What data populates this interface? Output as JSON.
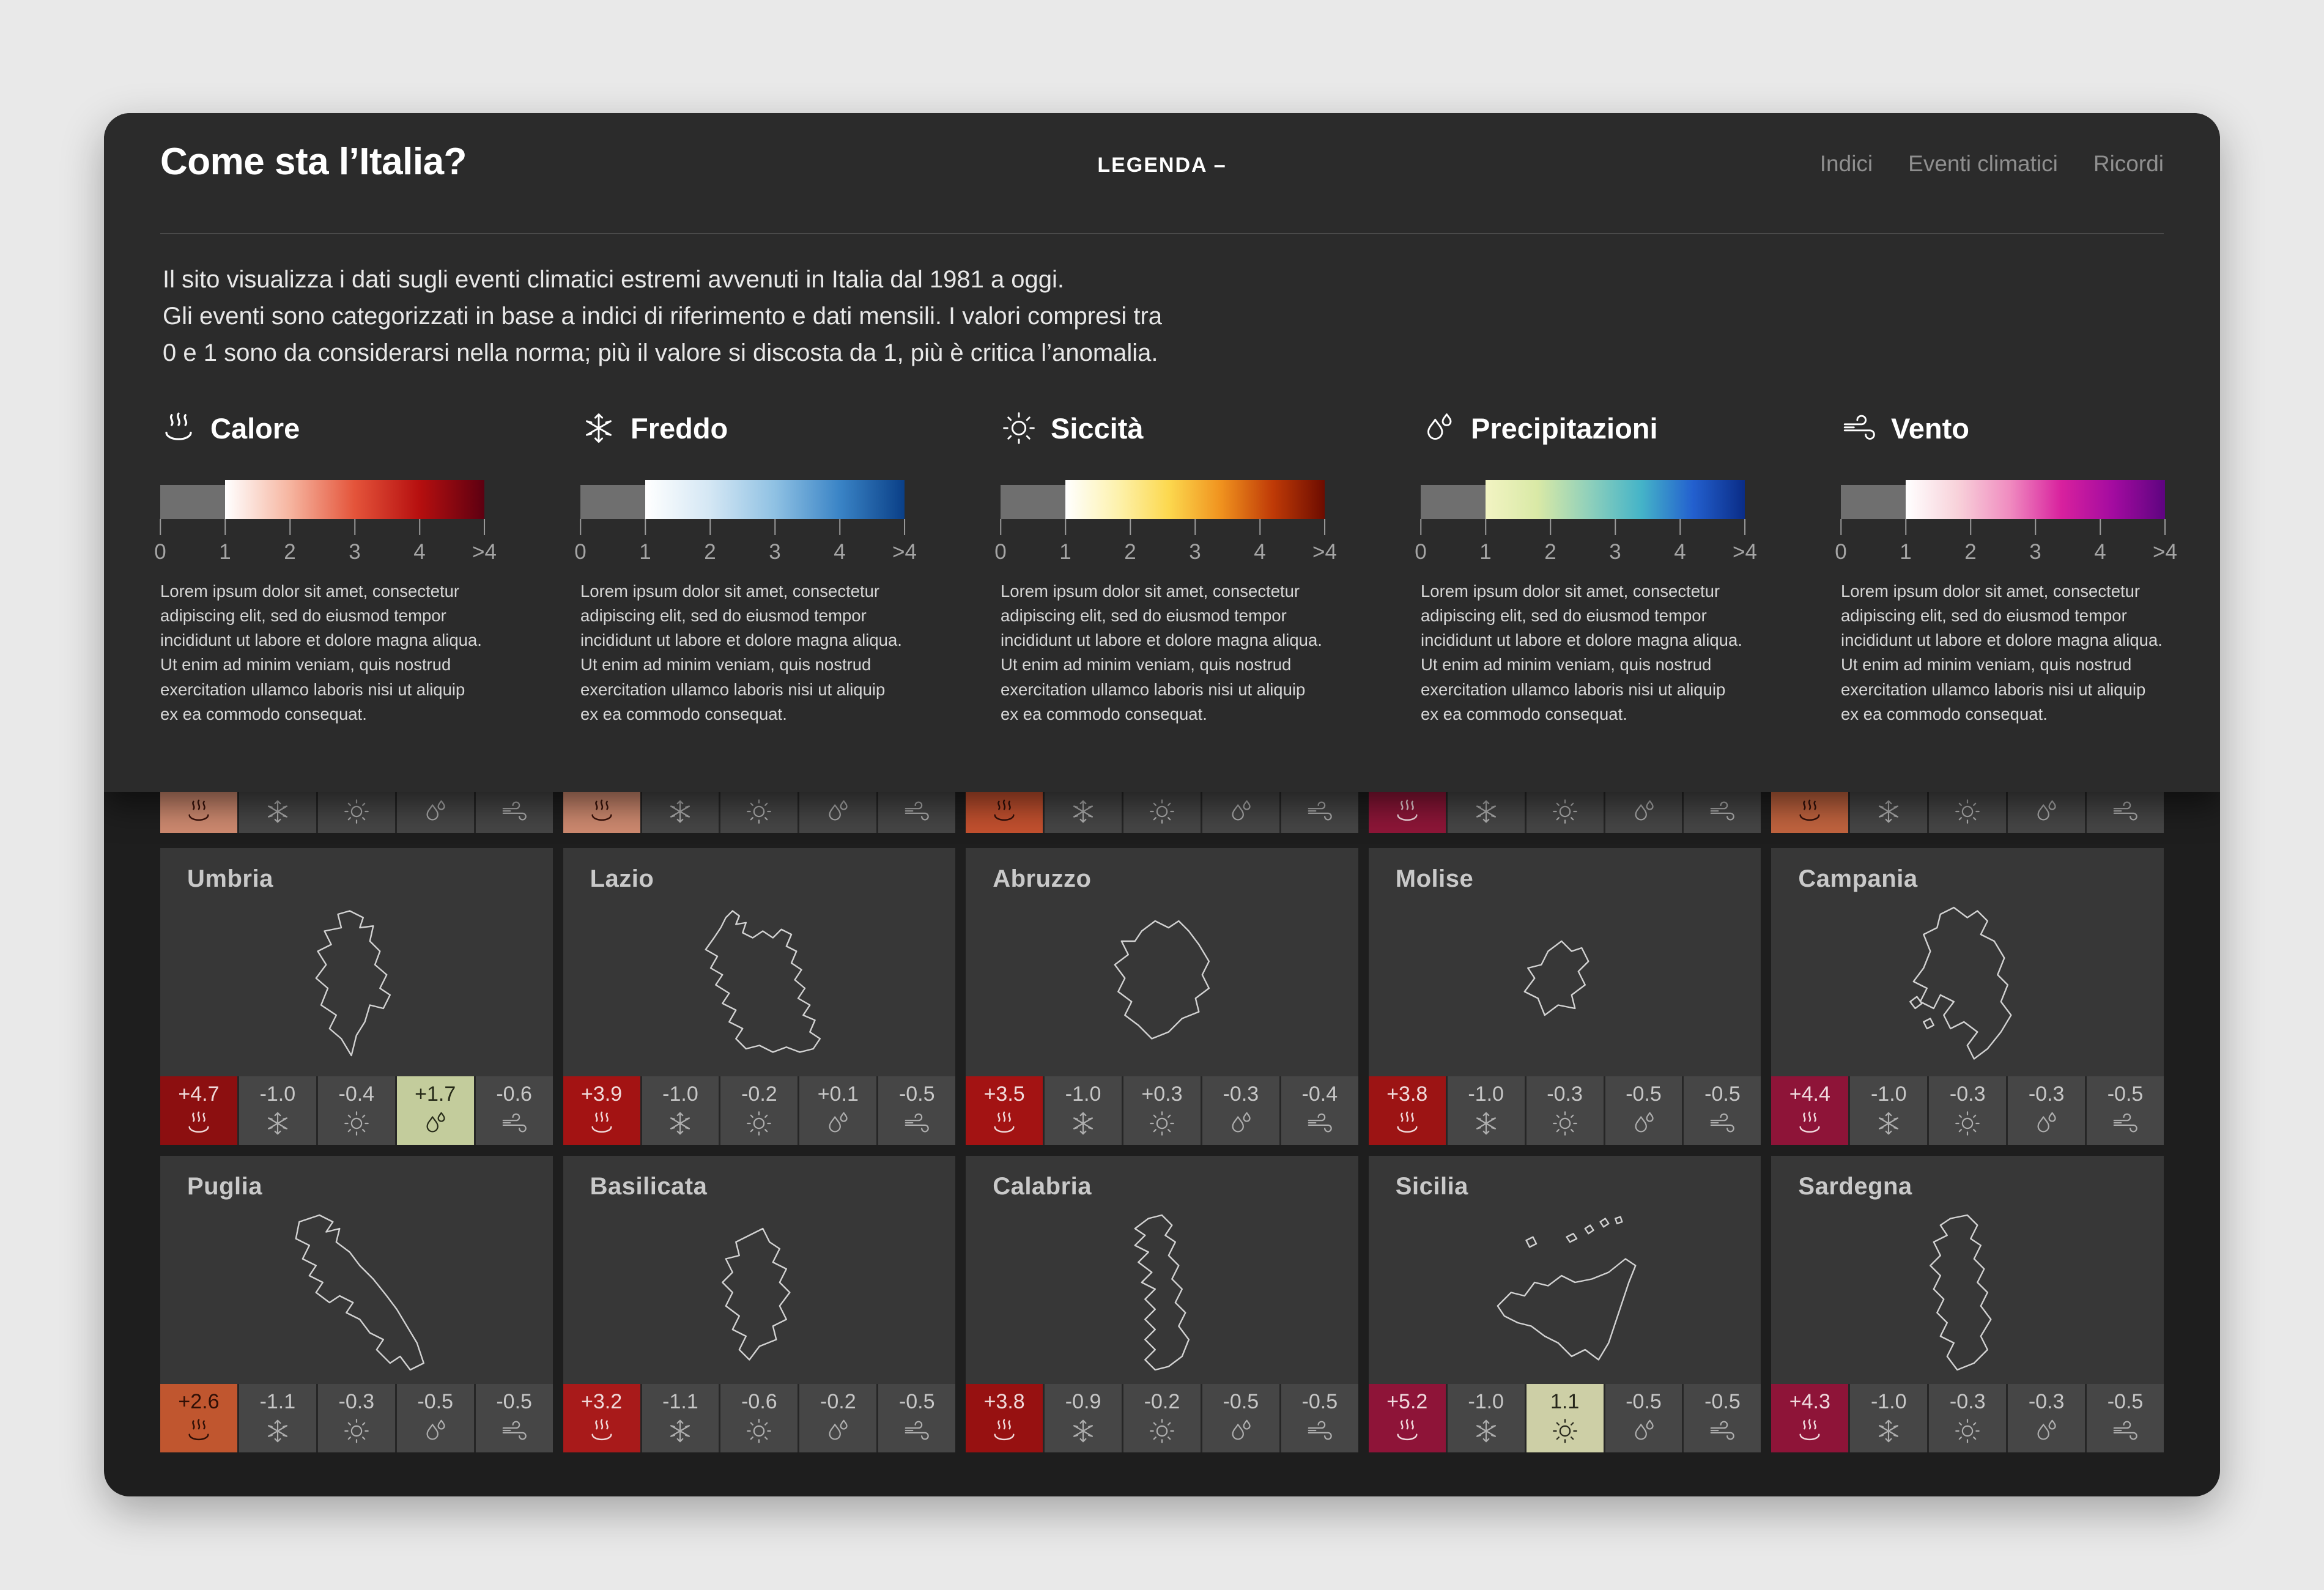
{
  "header": {
    "title": "Come sta l’Italia?",
    "legend_toggle": "LEGENDA –",
    "nav": [
      {
        "label": "Indici"
      },
      {
        "label": "Eventi climatici"
      },
      {
        "label": "Ricordi"
      }
    ]
  },
  "intro": "Il sito visualizza i dati sugli eventi climatici estremi avvenuti in Italia dal 1981 a oggi.\nGli eventi sono categorizzati in base a indici di riferimento e dati mensili. I valori compresi tra\n0 e 1 sono da considerarsi nella norma; più il valore si discosta da 1, più è critica l’anomalia.",
  "legend": {
    "ticks": [
      "0",
      "1",
      "2",
      "3",
      "4",
      ">4"
    ],
    "description": "Lorem ipsum dolor sit amet, consectetur adipiscing elit, sed do eiusmod tempor incididunt ut labore et dolore magna aliqua. Ut enim ad minim veniam, quis nostrud exercitation ullamco laboris nisi ut aliquip ex ea commodo consequat.",
    "gray": "#6f6f6f",
    "categories": [
      {
        "id": "calore",
        "label": "Calore",
        "icon": "heat-icon",
        "stops": [
          "#ffffff",
          "#f6b5a0",
          "#e4543a",
          "#b60f0f",
          "#5d0011"
        ]
      },
      {
        "id": "freddo",
        "label": "Freddo",
        "icon": "snowflake-icon",
        "stops": [
          "#ffffff",
          "#d4e7f4",
          "#8fc1e3",
          "#3a84c6",
          "#0a3f87"
        ]
      },
      {
        "id": "siccita",
        "label": "Siccità",
        "icon": "sun-icon",
        "stops": [
          "#ffffff",
          "#fdf2ae",
          "#fcd84e",
          "#f0921e",
          "#bf3a07",
          "#6d0c00"
        ]
      },
      {
        "id": "precipitazioni",
        "label": "Precipitazioni",
        "icon": "drops-icon",
        "stops": [
          "#f2f4c3",
          "#d9e9a6",
          "#8fd0bb",
          "#45b4c8",
          "#2360cf",
          "#0a2c86"
        ]
      },
      {
        "id": "vento",
        "label": "Vento",
        "icon": "wind-icon",
        "stops": [
          "#ffffff",
          "#f8d2da",
          "#f08cc0",
          "#d8219e",
          "#a30ba0",
          "#5e0480"
        ]
      }
    ]
  },
  "cell_icons": [
    "heat-icon",
    "snowflake-icon",
    "sun-icon",
    "drops-icon",
    "wind-icon"
  ],
  "partial_row": [
    {
      "heat_color": "#cf8a70",
      "heat_fg": "#3a120a"
    },
    {
      "heat_color": "#cf8a70",
      "heat_fg": "#3a120a"
    },
    {
      "heat_color": "#c4512f",
      "heat_fg": "#33100a"
    },
    {
      "heat_color": "#8e1638",
      "heat_fg": "#f2d8de"
    },
    {
      "heat_color": "#c2643f",
      "heat_fg": "#33100a"
    }
  ],
  "regions": [
    {
      "name": "Umbria",
      "values": [
        {
          "value": "+4.7",
          "bg": "#8c0f10",
          "fg": "#f0dada"
        },
        {
          "value": "-1.0"
        },
        {
          "value": "-0.4"
        },
        {
          "value": "+1.7",
          "bg": "#c3cc9c",
          "fg": "#262a18"
        },
        {
          "value": "-0.6"
        }
      ]
    },
    {
      "name": "Lazio",
      "values": [
        {
          "value": "+3.9",
          "bg": "#a31313",
          "fg": "#f0dada"
        },
        {
          "value": "-1.0"
        },
        {
          "value": "-0.2"
        },
        {
          "value": "+0.1"
        },
        {
          "value": "-0.5"
        }
      ]
    },
    {
      "name": "Abruzzo",
      "values": [
        {
          "value": "+3.5",
          "bg": "#a31313",
          "fg": "#f0dada"
        },
        {
          "value": "-1.0"
        },
        {
          "value": "+0.3"
        },
        {
          "value": "-0.3"
        },
        {
          "value": "-0.4"
        }
      ]
    },
    {
      "name": "Molise",
      "values": [
        {
          "value": "+3.8",
          "bg": "#9c1414",
          "fg": "#f0dada"
        },
        {
          "value": "-1.0"
        },
        {
          "value": "-0.3"
        },
        {
          "value": "-0.5"
        },
        {
          "value": "-0.5"
        }
      ]
    },
    {
      "name": "Campania",
      "values": [
        {
          "value": "+4.4",
          "bg": "#8e1438",
          "fg": "#f0dade"
        },
        {
          "value": "-1.0"
        },
        {
          "value": "-0.3"
        },
        {
          "value": "-0.3"
        },
        {
          "value": "-0.5"
        }
      ]
    },
    {
      "name": "Puglia",
      "values": [
        {
          "value": "+2.6",
          "bg": "#c0562f",
          "fg": "#2f0f06"
        },
        {
          "value": "-1.1"
        },
        {
          "value": "-0.3"
        },
        {
          "value": "-0.5"
        },
        {
          "value": "-0.5"
        }
      ]
    },
    {
      "name": "Basilicata",
      "values": [
        {
          "value": "+3.2",
          "bg": "#a81a1a",
          "fg": "#f0dada"
        },
        {
          "value": "-1.1"
        },
        {
          "value": "-0.6"
        },
        {
          "value": "-0.2"
        },
        {
          "value": "-0.5"
        }
      ]
    },
    {
      "name": "Calabria",
      "values": [
        {
          "value": "+3.8",
          "bg": "#971111",
          "fg": "#f0dada"
        },
        {
          "value": "-0.9"
        },
        {
          "value": "-0.2"
        },
        {
          "value": "-0.5"
        },
        {
          "value": "-0.5"
        }
      ]
    },
    {
      "name": "Sicilia",
      "values": [
        {
          "value": "+5.2",
          "bg": "#8e1438",
          "fg": "#f0dade"
        },
        {
          "value": "-1.0"
        },
        {
          "value": "1.1",
          "bg": "#cdcfa6",
          "fg": "#26261a"
        },
        {
          "value": "-0.5"
        },
        {
          "value": "-0.5"
        }
      ]
    },
    {
      "name": "Sardegna",
      "values": [
        {
          "value": "+4.3",
          "bg": "#8e1438",
          "fg": "#f0dade"
        },
        {
          "value": "-1.0"
        },
        {
          "value": "-0.3"
        },
        {
          "value": "-0.3"
        },
        {
          "value": "-0.5"
        }
      ]
    }
  ],
  "colors": {
    "page_bg": "#e9e9e9",
    "panel_bg": "#1e1e1e",
    "legend_panel_bg": "#2b2b2b",
    "card_bg": "#373737",
    "cell_bg": "#464646",
    "text_light": "#e8e8e8",
    "text_muted": "#8f8f8f"
  }
}
